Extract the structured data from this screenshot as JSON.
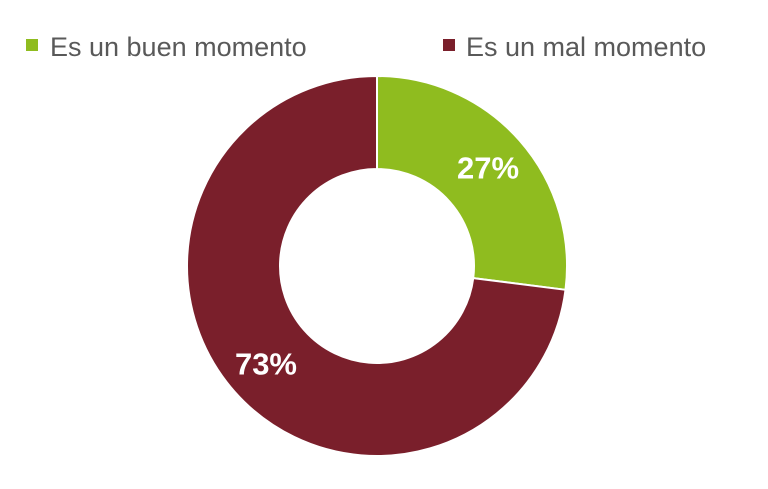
{
  "chart_data": {
    "type": "pie",
    "variant": "donut",
    "title": "",
    "categories": [
      "Es un buen momento",
      "Es un mal momento"
    ],
    "values": [
      27,
      73
    ],
    "value_labels": [
      "27%",
      "73%"
    ],
    "colors": [
      "#8FBC1F",
      "#7A1F2B"
    ],
    "legend_position": "top"
  }
}
